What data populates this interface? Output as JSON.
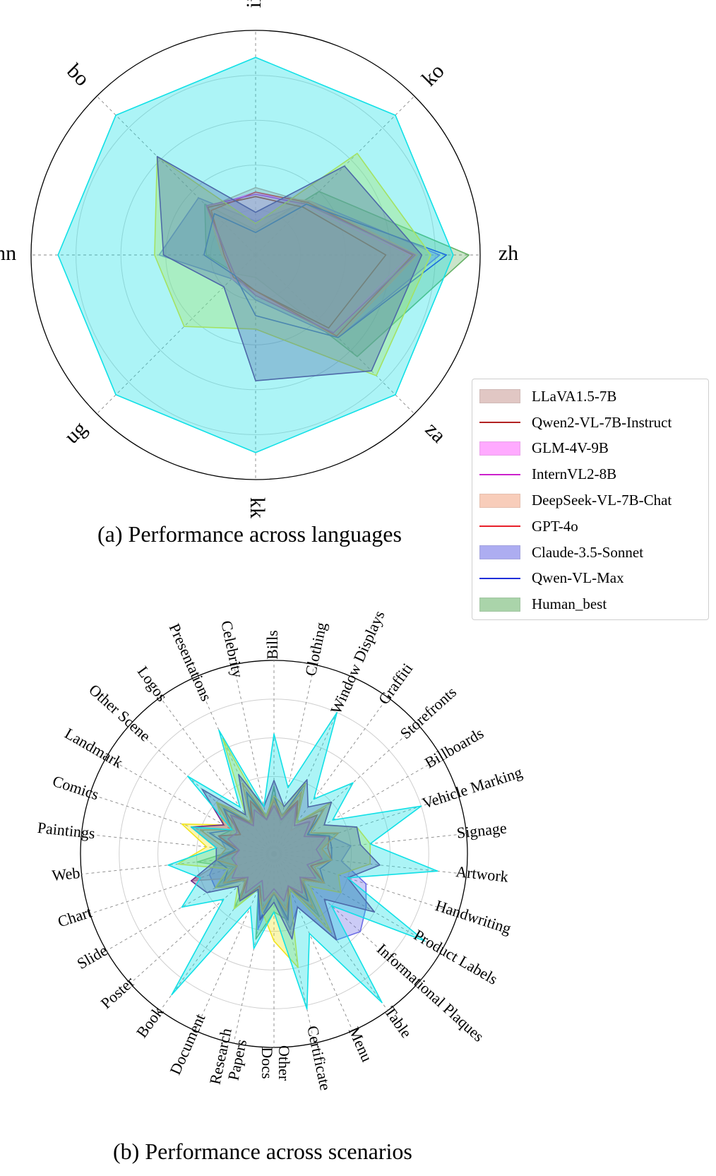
{
  "captions": {
    "a": "(a) Performance across languages",
    "b": "(b) Performance across scenarios"
  },
  "colors": {
    "LLaVA1.5-7B": "#c99a94",
    "Qwen2-VL-7B-Instruct": "#b22222",
    "GLM-4V-9B": "#ff66ff",
    "InternVL2-8B": "#cc22cc",
    "DeepSeek-VL-7B-Chat": "#f4a582",
    "GPT-4o": "#e8202a",
    "Claude-3.5-Sonnet": "#6b6be6",
    "Qwen-VL-Max": "#1f2fd9",
    "Human_best": "#66b266",
    "cyan_series": "#11e0e6",
    "yellow_series": "#f2e41f",
    "purple_series": "#6e2a87",
    "orange_series": "#ff9a1f"
  },
  "legend": [
    {
      "label": "LLaVA1.5-7B",
      "style": "patch"
    },
    {
      "label": "Qwen2-VL-7B-Instruct",
      "style": "line"
    },
    {
      "label": "GLM-4V-9B",
      "style": "patch"
    },
    {
      "label": "InternVL2-8B",
      "style": "line"
    },
    {
      "label": "DeepSeek-VL-7B-Chat",
      "style": "patch"
    },
    {
      "label": "GPT-4o",
      "style": "line"
    },
    {
      "label": "Claude-3.5-Sonnet",
      "style": "patch"
    },
    {
      "label": "Qwen-VL-Max",
      "style": "line"
    },
    {
      "label": "Human_best",
      "style": "patch"
    }
  ],
  "chart_data": [
    {
      "type": "radar",
      "title": "(a) Performance across languages",
      "categories": [
        "ii",
        "ko",
        "zh",
        "za",
        "kk",
        "ug",
        "mn",
        "bo"
      ],
      "rlim": [
        0,
        1
      ],
      "grid": true,
      "series": [
        {
          "name": "Human_best",
          "values": [
            0.11,
            0.4,
            0.95,
            0.64,
            0.1,
            0.12,
            0.22,
            0.32
          ],
          "fill": true
        },
        {
          "name": "Claude-3.5-Sonnet",
          "values": [
            0.15,
            0.34,
            0.82,
            0.52,
            0.2,
            0.15,
            0.43,
            0.36
          ],
          "fill": true
        },
        {
          "name": "LLaVA1.5-7B",
          "values": [
            0.3,
            0.33,
            0.72,
            0.5,
            0.18,
            0.14,
            0.14,
            0.3
          ],
          "fill": true
        },
        {
          "name": "DeepSeek-VL-7B-Chat",
          "values": [
            0.27,
            0.34,
            0.72,
            0.52,
            0.17,
            0.13,
            0.15,
            0.31
          ],
          "fill": true
        },
        {
          "name": "GLM-4V-9B",
          "values": [
            0.28,
            0.31,
            0.69,
            0.49,
            0.17,
            0.15,
            0.14,
            0.3
          ],
          "fill": true
        },
        {
          "name": "Qwen2-VL-7B-Instruct",
          "values": [
            0.26,
            0.3,
            0.58,
            0.46,
            0.16,
            0.13,
            0.13,
            0.3
          ],
          "fill": false
        },
        {
          "name": "GPT-4o",
          "values": [
            0.28,
            0.33,
            0.7,
            0.51,
            0.16,
            0.14,
            0.14,
            0.28
          ],
          "fill": false
        },
        {
          "name": "InternVL2-8B",
          "values": [
            0.27,
            0.32,
            0.71,
            0.49,
            0.18,
            0.13,
            0.13,
            0.31
          ],
          "fill": false
        },
        {
          "name": "Qwen-VL-Max",
          "values": [
            0.1,
            0.32,
            0.85,
            0.52,
            0.27,
            0.13,
            0.23,
            0.26
          ],
          "fill": false
        },
        {
          "name": "",
          "colorKey": "yellow_series",
          "values": [
            0.14,
            0.64,
            0.78,
            0.76,
            0.33,
            0.45,
            0.45,
            0.62
          ],
          "fill": true
        },
        {
          "name": "",
          "colorKey": "purple_series",
          "values": [
            0.19,
            0.56,
            0.74,
            0.73,
            0.56,
            0.2,
            0.41,
            0.62
          ],
          "fill": true
        },
        {
          "name": "",
          "colorKey": "cyan_series",
          "values": [
            0.88,
            0.88,
            0.88,
            0.88,
            0.88,
            0.88,
            0.88,
            0.88
          ],
          "fill": true
        }
      ]
    },
    {
      "type": "radar",
      "title": "(b) Performance across scenarios",
      "categories": [
        "Bills",
        "Clothing",
        "Window Displays",
        "Graffiti",
        "Storefronts",
        "Billboards",
        "Vehicle Marking",
        "Signage",
        "Artwork",
        "Handwriting",
        "Product Labels",
        "Informational Plaques",
        "Table",
        "Menu",
        "Certificate",
        "Other\nDocs",
        "Research\nPapers",
        "Document",
        "Book",
        "Poster",
        "Slide",
        "Chart",
        "Web",
        "Paintings",
        "Comics",
        "Landmark",
        "Other Scene",
        "Logos",
        "Presentations",
        "Celebrity"
      ],
      "rlim": [
        0,
        1
      ],
      "grid": true,
      "series": [
        {
          "name": "Human_best",
          "values": [
            0.35,
            0.16,
            0.3,
            0.18,
            0.25,
            0.2,
            0.35,
            0.25,
            0.3,
            0.18,
            0.3,
            0.2,
            0.4,
            0.18,
            0.35,
            0.3,
            0.45,
            0.2,
            0.35,
            0.18,
            0.35,
            0.22,
            0.4,
            0.2,
            0.3,
            0.25,
            0.4,
            0.2,
            0.35,
            0.18
          ],
          "fill": true
        },
        {
          "name": "Claude-3.5-Sonnet",
          "values": [
            0.25,
            0.2,
            0.3,
            0.15,
            0.3,
            0.2,
            0.3,
            0.4,
            0.35,
            0.5,
            0.55,
            0.6,
            0.55,
            0.3,
            0.4,
            0.2,
            0.4,
            0.2,
            0.3,
            0.2,
            0.35,
            0.35,
            0.3,
            0.25,
            0.3,
            0.2,
            0.3,
            0.2,
            0.3,
            0.2
          ],
          "fill": true
        },
        {
          "name": "LLaVA1.5-7B",
          "values": [
            0.3,
            0.2,
            0.35,
            0.15,
            0.25,
            0.2,
            0.3,
            0.25,
            0.3,
            0.2,
            0.3,
            0.2,
            0.25,
            0.2,
            0.3,
            0.2,
            0.25,
            0.2,
            0.3,
            0.2,
            0.25,
            0.45,
            0.25,
            0.2,
            0.25,
            0.2,
            0.3,
            0.2,
            0.3,
            0.2
          ],
          "fill": true
        },
        {
          "name": "DeepSeek-VL-7B-Chat",
          "values": [
            0.25,
            0.2,
            0.3,
            0.2,
            0.3,
            0.2,
            0.3,
            0.25,
            0.25,
            0.2,
            0.25,
            0.2,
            0.25,
            0.2,
            0.25,
            0.2,
            0.25,
            0.15,
            0.25,
            0.2,
            0.25,
            0.2,
            0.2,
            0.2,
            0.25,
            0.25,
            0.3,
            0.2,
            0.25,
            0.2
          ],
          "fill": true
        },
        {
          "name": "GLM-4V-9B",
          "values": [
            0.25,
            0.18,
            0.28,
            0.18,
            0.28,
            0.18,
            0.28,
            0.22,
            0.25,
            0.18,
            0.25,
            0.18,
            0.25,
            0.18,
            0.25,
            0.18,
            0.25,
            0.15,
            0.25,
            0.18,
            0.25,
            0.2,
            0.2,
            0.18,
            0.25,
            0.22,
            0.3,
            0.18,
            0.25,
            0.18
          ],
          "fill": true
        },
        {
          "name": "Qwen2-VL-7B-Instruct",
          "values": [
            0.3,
            0.2,
            0.3,
            0.2,
            0.3,
            0.2,
            0.3,
            0.3,
            0.3,
            0.2,
            0.3,
            0.2,
            0.3,
            0.2,
            0.3,
            0.2,
            0.3,
            0.2,
            0.3,
            0.2,
            0.3,
            0.2,
            0.3,
            0.2,
            0.3,
            0.2,
            0.3,
            0.2,
            0.3,
            0.2
          ],
          "fill": false
        },
        {
          "name": "GPT-4o",
          "values": [
            0.28,
            0.18,
            0.3,
            0.18,
            0.25,
            0.18,
            0.3,
            0.28,
            0.3,
            0.2,
            0.3,
            0.18,
            0.3,
            0.18,
            0.35,
            0.2,
            0.3,
            0.18,
            0.3,
            0.18,
            0.3,
            0.2,
            0.3,
            0.18,
            0.3,
            0.2,
            0.35,
            0.18,
            0.3,
            0.18
          ],
          "fill": false
        },
        {
          "name": "InternVL2-8B",
          "values": [
            0.25,
            0.18,
            0.28,
            0.18,
            0.25,
            0.18,
            0.28,
            0.22,
            0.25,
            0.18,
            0.25,
            0.18,
            0.25,
            0.18,
            0.25,
            0.18,
            0.25,
            0.15,
            0.25,
            0.18,
            0.25,
            0.2,
            0.22,
            0.18,
            0.25,
            0.22,
            0.3,
            0.18,
            0.25,
            0.18
          ],
          "fill": false
        },
        {
          "name": "Qwen-VL-Max",
          "values": [
            0.3,
            0.2,
            0.4,
            0.2,
            0.35,
            0.2,
            0.3,
            0.3,
            0.3,
            0.25,
            0.3,
            0.2,
            0.3,
            0.2,
            0.35,
            0.2,
            0.35,
            0.2,
            0.3,
            0.2,
            0.3,
            0.25,
            0.3,
            0.2,
            0.35,
            0.25,
            0.35,
            0.2,
            0.35,
            0.2
          ],
          "fill": false
        },
        {
          "name": "",
          "colorKey": "orange_series",
          "values": [
            0.28,
            0.2,
            0.35,
            0.2,
            0.35,
            0.22,
            0.35,
            0.25,
            0.3,
            0.22,
            0.3,
            0.2,
            0.35,
            0.2,
            0.3,
            0.2,
            0.3,
            0.2,
            0.3,
            0.2,
            0.3,
            0.2,
            0.3,
            0.25,
            0.4,
            0.25,
            0.4,
            0.2,
            0.4,
            0.2
          ],
          "fill": false
        },
        {
          "name": "",
          "colorKey": "yellow_series",
          "values": [
            0.3,
            0.25,
            0.4,
            0.2,
            0.4,
            0.3,
            0.45,
            0.5,
            0.5,
            0.35,
            0.4,
            0.25,
            0.5,
            0.2,
            0.6,
            0.45,
            0.3,
            0.2,
            0.35,
            0.25,
            0.35,
            0.25,
            0.5,
            0.35,
            0.5,
            0.3,
            0.4,
            0.25,
            0.65,
            0.2
          ],
          "fill": true
        },
        {
          "name": "",
          "colorKey": "purple_series",
          "values": [
            0.38,
            0.25,
            0.42,
            0.3,
            0.4,
            0.3,
            0.45,
            0.45,
            0.55,
            0.4,
            0.6,
            0.35,
            0.55,
            0.3,
            0.45,
            0.25,
            0.35,
            0.2,
            0.3,
            0.25,
            0.4,
            0.45,
            0.3,
            0.3,
            0.45,
            0.3,
            0.5,
            0.25,
            0.45,
            0.25
          ],
          "fill": true
        },
        {
          "name": "",
          "colorKey": "cyan_series",
          "values": [
            0.62,
            0.35,
            0.8,
            0.35,
            0.55,
            0.35,
            0.8,
            0.5,
            0.85,
            0.4,
            0.9,
            0.4,
            0.95,
            0.45,
            0.82,
            0.3,
            0.5,
            0.3,
            0.9,
            0.35,
            0.55,
            0.4,
            0.55,
            0.3,
            0.45,
            0.25,
            0.6,
            0.3,
            0.7,
            0.25
          ],
          "fill": true
        }
      ]
    }
  ]
}
